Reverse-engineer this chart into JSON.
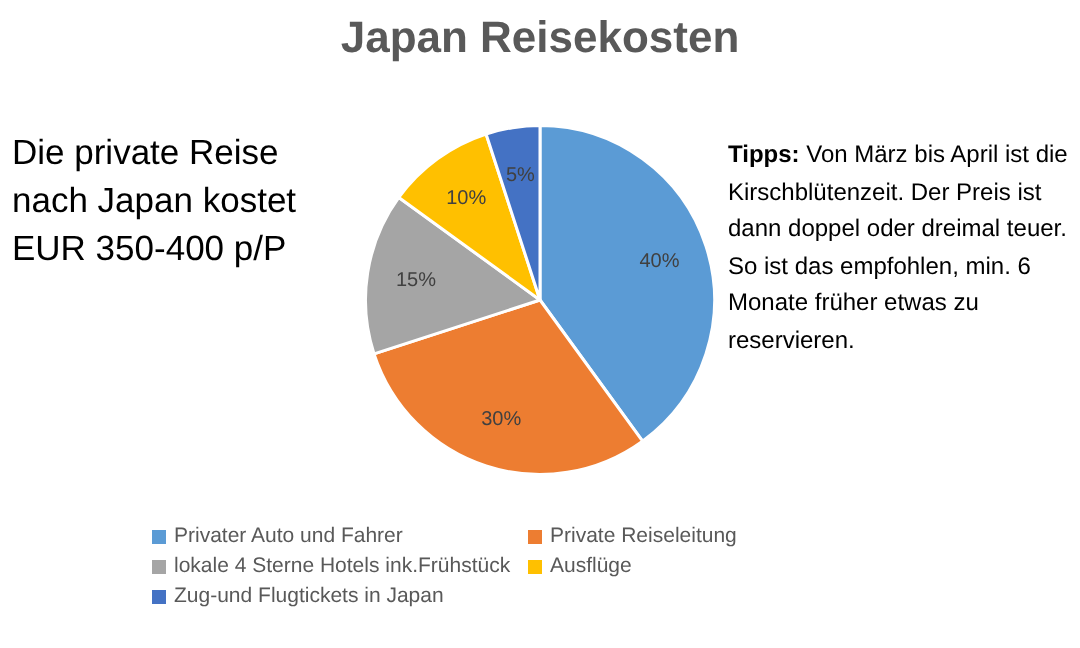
{
  "chart_data": {
    "type": "pie",
    "title": "Japan Reisekosten",
    "categories": [
      "Privater Auto und Fahrer",
      "Private Reiseleitung",
      "lokale 4 Sterne Hotels ink.Frühstück",
      "Ausflüge",
      "Zug-und Flugtickets in Japan"
    ],
    "values": [
      40,
      30,
      15,
      10,
      5
    ],
    "value_labels": [
      "40%",
      "30%",
      "15%",
      "10%",
      "5%"
    ],
    "colors": [
      "#5b9bd5",
      "#ed7d31",
      "#a5a5a5",
      "#ffc000",
      "#4472c4"
    ],
    "legend": "bottom",
    "annotations": [
      "Die private Reise nach Japan kostet EUR 350-400 p/P",
      "Tipps: Von März bis April ist die Kirschblütenzeit. Der Preis ist dann doppel oder dreimal teuer. So ist das empfohlen, min. 6 Monate früher etwas zu reservieren."
    ]
  }
}
